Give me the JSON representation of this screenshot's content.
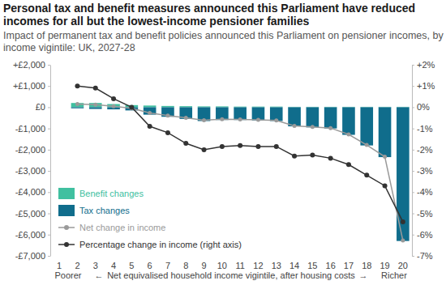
{
  "chart_data": {
    "type": "bar",
    "title": "Personal tax and benefit measures announced this Parliament have reduced incomes for all but the lowest-income pensioner families",
    "subtitle": "Impact of permanent tax and benefit policies announced this Parliament on pensioner incomes, by income vigintile: UK, 2027-28",
    "x_label": "Net equivalised household income vigintile, after housing costs",
    "annotations": [
      "Poorer",
      "←",
      "→",
      "Richer"
    ],
    "categories": [
      "1",
      "2",
      "3",
      "4",
      "5",
      "6",
      "7",
      "8",
      "9",
      "10",
      "11",
      "12",
      "13",
      "14",
      "15",
      "16",
      "17",
      "18",
      "19",
      "20"
    ],
    "stacked": true,
    "grid": false,
    "legend": "bottom-left",
    "series": [
      {
        "name": "Benefit changes",
        "type": "bar",
        "color": "#40c0a0",
        "values": [
          null,
          200,
          200,
          150,
          100,
          80,
          60,
          50,
          40,
          40,
          30,
          30,
          30,
          20,
          20,
          20,
          20,
          20,
          20,
          20
        ]
      },
      {
        "name": "Tax changes",
        "type": "bar",
        "color": "#106d8c",
        "values": [
          null,
          -50,
          -80,
          -100,
          -150,
          -350,
          -450,
          -550,
          -650,
          -600,
          -600,
          -620,
          -650,
          -900,
          -950,
          -1000,
          -1300,
          -1800,
          -2350,
          -6300
        ]
      },
      {
        "name": "Net change in income",
        "type": "line",
        "color": "#9a9a9a",
        "marker": "circle",
        "values": [
          null,
          150,
          120,
          50,
          -50,
          -270,
          -390,
          -500,
          -610,
          -560,
          -570,
          -590,
          -620,
          -880,
          -930,
          -980,
          -1280,
          -1780,
          -2330,
          -6280
        ]
      },
      {
        "name": "Percentage change in income (right axis)",
        "type": "line",
        "color": "#333333",
        "marker": "circle",
        "axis": "y2",
        "values": [
          null,
          1.0,
          0.9,
          0.4,
          0.0,
          -0.9,
          -1.2,
          -1.7,
          -2.0,
          -1.85,
          -1.8,
          -1.85,
          -1.85,
          -2.3,
          -2.25,
          -2.4,
          -2.7,
          -3.2,
          -3.7,
          -5.4
        ]
      }
    ],
    "ylim": [
      -7000,
      2000
    ],
    "yticks": [
      {
        "value": 2000,
        "label": "+£2,000"
      },
      {
        "value": 1000,
        "label": "+£1,000"
      },
      {
        "value": 0,
        "label": "£0"
      },
      {
        "value": -1000,
        "label": "-£1,000"
      },
      {
        "value": -2000,
        "label": "-£2,000"
      },
      {
        "value": -3000,
        "label": "-£3,000"
      },
      {
        "value": -4000,
        "label": "-£4,000"
      },
      {
        "value": -5000,
        "label": "-£5,000"
      },
      {
        "value": -6000,
        "label": "-£6,000"
      },
      {
        "value": -7000,
        "label": "-£7,000"
      }
    ],
    "y2lim": [
      -7,
      2
    ],
    "y2ticks": [
      {
        "value": 2,
        "label": "+2%"
      },
      {
        "value": 1,
        "label": "+1%"
      },
      {
        "value": 0,
        "label": "0%"
      },
      {
        "value": -1,
        "label": "-1%"
      },
      {
        "value": -2,
        "label": "-2%"
      },
      {
        "value": -3,
        "label": "-3%"
      },
      {
        "value": -4,
        "label": "-4%"
      },
      {
        "value": -5,
        "label": "-5%"
      },
      {
        "value": -6,
        "label": "-6%"
      },
      {
        "value": -7,
        "label": "-7%"
      }
    ]
  }
}
